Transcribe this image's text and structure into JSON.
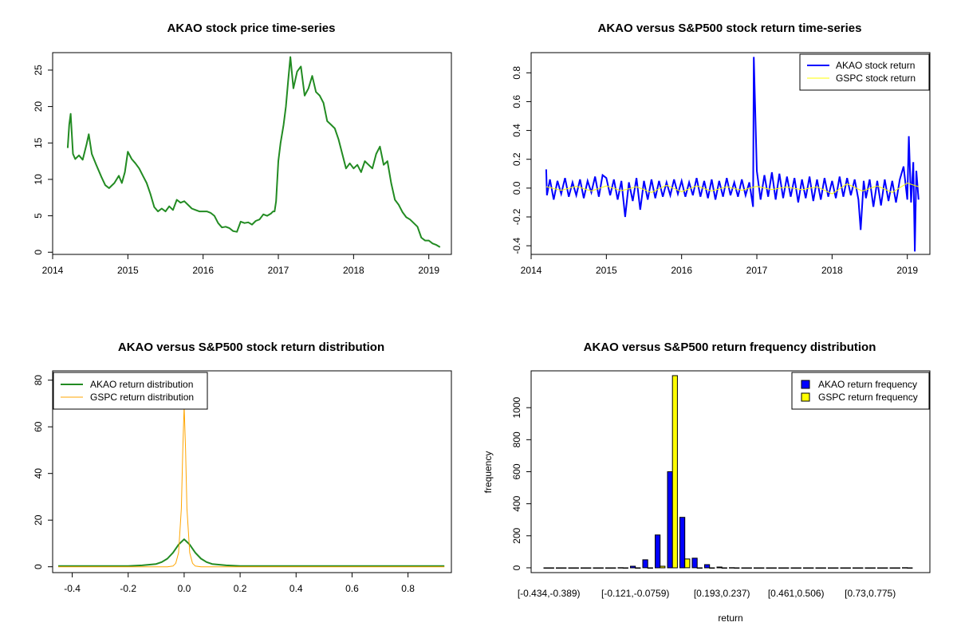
{
  "chart_data": [
    {
      "type": "line",
      "title": "AKAO stock price time-series",
      "xlabel": "",
      "ylabel": "",
      "xlim": [
        2014.0,
        2019.3
      ],
      "ylim": [
        -0.3,
        27.4
      ],
      "x_ticks": [
        "2014",
        "2015",
        "2016",
        "2017",
        "2018",
        "2019"
      ],
      "y_ticks": [
        "0",
        "5",
        "10",
        "15",
        "20",
        "25"
      ],
      "color": "#228b22",
      "series": [
        {
          "name": "AKAO",
          "x": [
            2014.2,
            2014.22,
            2014.24,
            2014.27,
            2014.3,
            2014.35,
            2014.4,
            2014.45,
            2014.48,
            2014.52,
            2014.58,
            2014.65,
            2014.7,
            2014.75,
            2014.82,
            2014.88,
            2014.92,
            2014.96,
            2015.0,
            2015.05,
            2015.1,
            2015.15,
            2015.2,
            2015.25,
            2015.3,
            2015.35,
            2015.4,
            2015.45,
            2015.5,
            2015.55,
            2015.6,
            2015.65,
            2015.7,
            2015.75,
            2015.8,
            2015.85,
            2015.9,
            2015.95,
            2016.0,
            2016.05,
            2016.1,
            2016.15,
            2016.2,
            2016.25,
            2016.3,
            2016.35,
            2016.4,
            2016.45,
            2016.5,
            2016.55,
            2016.6,
            2016.65,
            2016.7,
            2016.75,
            2016.8,
            2016.85,
            2016.9,
            2016.93,
            2016.95,
            2016.97,
            2017.0,
            2017.03,
            2017.07,
            2017.1,
            2017.13,
            2017.16,
            2017.2,
            2017.25,
            2017.3,
            2017.35,
            2017.4,
            2017.45,
            2017.5,
            2017.55,
            2017.6,
            2017.65,
            2017.7,
            2017.75,
            2017.8,
            2017.85,
            2017.9,
            2017.95,
            2018.0,
            2018.05,
            2018.1,
            2018.15,
            2018.2,
            2018.25,
            2018.3,
            2018.35,
            2018.4,
            2018.45,
            2018.5,
            2018.55,
            2018.6,
            2018.65,
            2018.7,
            2018.75,
            2018.8,
            2018.85,
            2018.9,
            2018.95,
            2019.0,
            2019.05,
            2019.1,
            2019.15
          ],
          "y": [
            14.3,
            17.5,
            19.0,
            13.5,
            12.8,
            13.3,
            12.7,
            14.8,
            16.2,
            13.5,
            12.0,
            10.3,
            9.2,
            8.8,
            9.5,
            10.5,
            9.5,
            11.0,
            13.8,
            12.8,
            12.2,
            11.5,
            10.5,
            9.5,
            8.0,
            6.2,
            5.6,
            6.0,
            5.6,
            6.3,
            5.8,
            7.2,
            6.8,
            7.0,
            6.5,
            6.0,
            5.8,
            5.6,
            5.6,
            5.6,
            5.4,
            5.0,
            4.0,
            3.4,
            3.5,
            3.3,
            2.9,
            2.8,
            4.2,
            4.0,
            4.1,
            3.8,
            4.3,
            4.5,
            5.2,
            5.0,
            5.3,
            5.6,
            5.6,
            7.0,
            12.5,
            15.0,
            17.5,
            20.0,
            23.5,
            26.8,
            22.5,
            24.8,
            25.5,
            21.5,
            22.5,
            24.2,
            22.0,
            21.5,
            20.5,
            18.0,
            17.5,
            17.0,
            15.5,
            13.5,
            11.5,
            12.2,
            11.5,
            12.0,
            11.0,
            12.5,
            12.0,
            11.5,
            13.5,
            14.5,
            12.0,
            12.5,
            9.5,
            7.2,
            6.5,
            5.5,
            4.8,
            4.5,
            4.0,
            3.5,
            2.0,
            1.6,
            1.6,
            1.2,
            1.0,
            0.7
          ]
        }
      ]
    },
    {
      "type": "line",
      "title": "AKAO versus S&P500 stock return time-series",
      "xlabel": "",
      "ylabel": "",
      "xlim": [
        2014.0,
        2019.3
      ],
      "ylim": [
        -0.46,
        0.94
      ],
      "x_ticks": [
        "2014",
        "2015",
        "2016",
        "2017",
        "2018",
        "2019"
      ],
      "y_ticks": [
        "-0.4",
        "-0.2",
        "0.0",
        "0.2",
        "0.4",
        "0.6",
        "0.8"
      ],
      "legend": {
        "position": "top-right",
        "entries": [
          "AKAO stock return",
          "GSPC stock return"
        ]
      },
      "series": [
        {
          "name": "AKAO stock return",
          "color": "#0000ff",
          "x": [
            2014.2,
            2014.21,
            2014.25,
            2014.3,
            2014.35,
            2014.4,
            2014.45,
            2014.5,
            2014.55,
            2014.6,
            2014.65,
            2014.7,
            2014.75,
            2014.8,
            2014.85,
            2014.9,
            2014.95,
            2015.0,
            2015.05,
            2015.1,
            2015.15,
            2015.2,
            2015.25,
            2015.3,
            2015.35,
            2015.4,
            2015.45,
            2015.5,
            2015.55,
            2015.6,
            2015.65,
            2015.7,
            2015.75,
            2015.8,
            2015.85,
            2015.9,
            2015.95,
            2016.0,
            2016.05,
            2016.1,
            2016.15,
            2016.2,
            2016.25,
            2016.3,
            2016.35,
            2016.4,
            2016.45,
            2016.5,
            2016.55,
            2016.6,
            2016.65,
            2016.7,
            2016.75,
            2016.8,
            2016.85,
            2016.9,
            2016.95,
            2016.96,
            2017.0,
            2017.05,
            2017.1,
            2017.15,
            2017.2,
            2017.25,
            2017.3,
            2017.35,
            2017.4,
            2017.45,
            2017.5,
            2017.55,
            2017.6,
            2017.65,
            2017.7,
            2017.75,
            2017.8,
            2017.85,
            2017.9,
            2017.95,
            2018.0,
            2018.05,
            2018.1,
            2018.15,
            2018.2,
            2018.25,
            2018.3,
            2018.35,
            2018.38,
            2018.42,
            2018.45,
            2018.5,
            2018.55,
            2018.6,
            2018.65,
            2018.7,
            2018.75,
            2018.8,
            2018.85,
            2018.9,
            2018.95,
            2019.0,
            2019.02,
            2019.05,
            2019.08,
            2019.1,
            2019.12,
            2019.15
          ],
          "y": [
            0.13,
            -0.05,
            0.06,
            -0.08,
            0.05,
            -0.04,
            0.07,
            -0.06,
            0.04,
            -0.05,
            0.06,
            -0.07,
            0.05,
            -0.03,
            0.08,
            -0.06,
            0.09,
            0.07,
            -0.05,
            0.06,
            -0.08,
            0.05,
            -0.2,
            0.04,
            -0.09,
            0.07,
            -0.15,
            0.05,
            -0.08,
            0.06,
            -0.07,
            0.05,
            -0.06,
            0.04,
            -0.05,
            0.06,
            -0.04,
            0.05,
            -0.06,
            0.04,
            -0.05,
            0.07,
            -0.06,
            0.05,
            -0.07,
            0.06,
            -0.08,
            0.05,
            -0.06,
            0.07,
            -0.05,
            0.04,
            -0.06,
            0.06,
            -0.05,
            0.04,
            -0.13,
            0.91,
            0.12,
            -0.08,
            0.09,
            -0.06,
            0.11,
            -0.08,
            0.1,
            -0.07,
            0.08,
            -0.06,
            0.07,
            -0.1,
            0.06,
            -0.07,
            0.08,
            -0.09,
            0.06,
            -0.08,
            0.07,
            -0.06,
            0.05,
            -0.07,
            0.08,
            -0.06,
            0.07,
            -0.05,
            0.06,
            -0.08,
            -0.29,
            0.05,
            -0.07,
            0.06,
            -0.13,
            0.05,
            -0.12,
            0.06,
            -0.09,
            0.05,
            -0.1,
            0.06,
            0.15,
            -0.08,
            0.36,
            -0.1,
            0.18,
            -0.44,
            0.12,
            -0.08
          ]
        },
        {
          "name": "GSPC stock return",
          "color": "#ffff00",
          "x": [
            2014.2,
            2014.4,
            2014.6,
            2014.8,
            2015.0,
            2015.2,
            2015.4,
            2015.6,
            2015.8,
            2016.0,
            2016.2,
            2016.4,
            2016.6,
            2016.8,
            2017.0,
            2017.2,
            2017.4,
            2017.6,
            2017.8,
            2018.0,
            2018.2,
            2018.4,
            2018.6,
            2018.8,
            2019.0,
            2019.15
          ],
          "y": [
            0.01,
            -0.015,
            0.012,
            -0.02,
            0.015,
            -0.018,
            0.01,
            -0.03,
            0.02,
            -0.025,
            0.015,
            -0.02,
            0.01,
            -0.015,
            0.012,
            -0.01,
            0.008,
            -0.012,
            0.01,
            -0.04,
            0.03,
            -0.02,
            0.015,
            -0.03,
            0.035,
            0.01
          ]
        }
      ]
    },
    {
      "type": "line",
      "title": "AKAO versus S&P500 stock return distribution",
      "xlabel": "",
      "ylabel": "",
      "xlim": [
        -0.47,
        0.955
      ],
      "ylim": [
        -2.5,
        84
      ],
      "x_ticks": [
        "-0.4",
        "-0.2",
        "0.0",
        "0.2",
        "0.4",
        "0.6",
        "0.8"
      ],
      "y_ticks": [
        "0",
        "20",
        "40",
        "60",
        "80"
      ],
      "legend": {
        "position": "top-left",
        "entries": [
          "AKAO return distribution",
          "GSPC return distribution"
        ]
      },
      "series": [
        {
          "name": "AKAO return distribution",
          "color": "#228b22",
          "x": [
            -0.45,
            -0.2,
            -0.15,
            -0.1,
            -0.08,
            -0.06,
            -0.04,
            -0.02,
            0.0,
            0.02,
            0.04,
            0.06,
            0.08,
            0.1,
            0.15,
            0.2,
            0.93
          ],
          "y": [
            0.3,
            0.3,
            0.6,
            1.2,
            2.0,
            3.5,
            6.0,
            9.5,
            11.8,
            9.5,
            6.0,
            3.5,
            2.0,
            1.2,
            0.6,
            0.3,
            0.3
          ]
        },
        {
          "name": "GSPC return distribution",
          "color": "#ffa500",
          "x": [
            -0.45,
            -0.06,
            -0.04,
            -0.03,
            -0.02,
            -0.01,
            -0.005,
            0.0,
            0.005,
            0.01,
            0.02,
            0.03,
            0.04,
            0.06,
            0.93
          ],
          "y": [
            0,
            0,
            0.3,
            1.5,
            6.0,
            25.0,
            50.0,
            69.0,
            50.0,
            25.0,
            6.0,
            1.5,
            0.3,
            0,
            0
          ]
        }
      ]
    },
    {
      "type": "bar",
      "title": "AKAO versus S&P500 return frequency distribution",
      "xlabel": "return",
      "ylabel": "frequency",
      "ylim": [
        -30,
        1230
      ],
      "x_tick_labels": [
        "[-0.434,-0.389)",
        "[-0.121,-0.0759)",
        "[0.193,0.237)",
        "[0.461,0.506)",
        "[0.73,0.775)"
      ],
      "x_tick_bins": [
        0,
        7,
        14,
        20,
        26
      ],
      "y_ticks": [
        "0",
        "200",
        "400",
        "600",
        "800",
        "1000"
      ],
      "legend": {
        "position": "top-right",
        "entries": [
          "AKAO return frequency",
          "GSPC return frequency"
        ]
      },
      "series": [
        {
          "name": "AKAO return frequency",
          "color": "#0000ff",
          "values": [
            0,
            0,
            0,
            0,
            0,
            0,
            1,
            10,
            50,
            205,
            600,
            315,
            60,
            20,
            5,
            1,
            0,
            0,
            0,
            0,
            0,
            0,
            0,
            0,
            0,
            0,
            0,
            0,
            0,
            1
          ]
        },
        {
          "name": "GSPC return frequency",
          "color": "#ffff00",
          "values": [
            0,
            0,
            0,
            0,
            0,
            0,
            0,
            0,
            0,
            10,
            1200,
            55,
            0,
            0,
            0,
            0,
            0,
            0,
            0,
            0,
            0,
            0,
            0,
            0,
            0,
            0,
            0,
            0,
            0,
            0
          ]
        }
      ]
    }
  ]
}
